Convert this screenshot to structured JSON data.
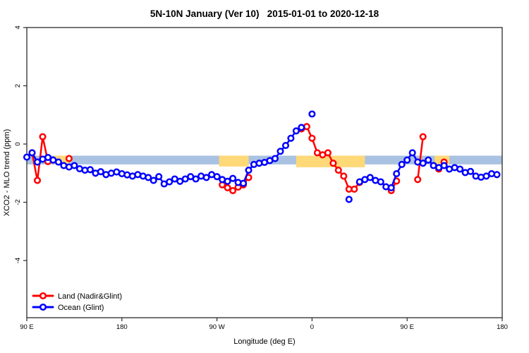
{
  "title": "5N-10N January (Ver 10)   2015-01-01 to 2020-12-18",
  "chart_data": {
    "type": "line",
    "title": "5N-10N January (Ver 10)   2015-01-01 to 2020-12-18",
    "xlabel": "Longitude (deg E)",
    "ylabel": "XCO2 - MLO trend (ppm)",
    "xlim": [
      90,
      540
    ],
    "ylim": [
      -5,
      4
    ],
    "y_ticks": [
      -4,
      -2,
      0,
      2,
      4
    ],
    "x_ticks": [
      {
        "lon": 90,
        "label": "90 E"
      },
      {
        "lon": 180,
        "label": "180"
      },
      {
        "lon": 270,
        "label": "90 W"
      },
      {
        "lon": 360,
        "label": "0"
      },
      {
        "lon": 450,
        "label": "90 E"
      },
      {
        "lon": 540,
        "label": "180"
      }
    ],
    "grid": false,
    "legend_position": "bottom-left",
    "reference_band": {
      "top": -0.4,
      "bottom": -0.7,
      "color": "#a9c2e1",
      "meaning": "ocean-band"
    },
    "land_color": "#ffd878",
    "land_patches": [
      {
        "from": 116,
        "to": 130,
        "depth": 0
      },
      {
        "from": 272,
        "to": 300,
        "depth": 3
      },
      {
        "from": 345,
        "to": 410,
        "depth": 4
      },
      {
        "from": 476,
        "to": 490,
        "depth": 0
      }
    ],
    "series": [
      {
        "id": "land",
        "name": "Land (Nadir&Glint)",
        "color": "#ff0000",
        "points": [
          [
            95,
            -0.3
          ],
          [
            100,
            -1.25
          ],
          [
            105,
            0.25
          ],
          [
            110,
            -0.6
          ],
          [
            130,
            -0.5
          ],
          [
            275,
            -1.4
          ],
          [
            280,
            -1.5
          ],
          [
            285,
            -1.6
          ],
          [
            290,
            -1.48
          ],
          [
            295,
            -1.4
          ],
          [
            300,
            -1.15
          ],
          [
            350,
            0.52
          ],
          [
            355,
            0.6
          ],
          [
            360,
            0.2
          ],
          [
            365,
            -0.3
          ],
          [
            370,
            -0.37
          ],
          [
            375,
            -0.3
          ],
          [
            380,
            -0.66
          ],
          [
            385,
            -0.9
          ],
          [
            390,
            -1.1
          ],
          [
            395,
            -1.55
          ],
          [
            400,
            -1.55
          ],
          [
            405,
            -1.32
          ],
          [
            435,
            -1.6
          ],
          [
            440,
            -1.27
          ],
          [
            460,
            -1.22
          ],
          [
            465,
            0.25
          ],
          [
            480,
            -0.86
          ],
          [
            485,
            -0.62
          ]
        ]
      },
      {
        "id": "ocean",
        "name": "Ocean (Glint)",
        "color": "#0000ff",
        "points": [
          [
            90,
            -0.45
          ],
          [
            95,
            -0.3
          ],
          [
            100,
            -0.62
          ],
          [
            105,
            -0.52
          ],
          [
            110,
            -0.46
          ],
          [
            115,
            -0.55
          ],
          [
            120,
            -0.62
          ],
          [
            125,
            -0.74
          ],
          [
            130,
            -0.79
          ],
          [
            135,
            -0.74
          ],
          [
            140,
            -0.85
          ],
          [
            145,
            -0.9
          ],
          [
            150,
            -0.88
          ],
          [
            155,
            -1.0
          ],
          [
            160,
            -0.95
          ],
          [
            165,
            -1.05
          ],
          [
            170,
            -1.0
          ],
          [
            175,
            -0.96
          ],
          [
            180,
            -1.02
          ],
          [
            185,
            -1.06
          ],
          [
            190,
            -1.1
          ],
          [
            195,
            -1.05
          ],
          [
            200,
            -1.1
          ],
          [
            205,
            -1.15
          ],
          [
            210,
            -1.25
          ],
          [
            215,
            -1.12
          ],
          [
            220,
            -1.37
          ],
          [
            225,
            -1.3
          ],
          [
            230,
            -1.2
          ],
          [
            235,
            -1.28
          ],
          [
            240,
            -1.2
          ],
          [
            245,
            -1.12
          ],
          [
            250,
            -1.2
          ],
          [
            255,
            -1.1
          ],
          [
            260,
            -1.15
          ],
          [
            265,
            -1.05
          ],
          [
            270,
            -1.12
          ],
          [
            275,
            -1.22
          ],
          [
            280,
            -1.28
          ],
          [
            285,
            -1.18
          ],
          [
            290,
            -1.32
          ],
          [
            295,
            -1.35
          ],
          [
            300,
            -0.9
          ],
          [
            305,
            -0.7
          ],
          [
            310,
            -0.66
          ],
          [
            315,
            -0.63
          ],
          [
            320,
            -0.57
          ],
          [
            325,
            -0.5
          ],
          [
            330,
            -0.25
          ],
          [
            335,
            -0.05
          ],
          [
            340,
            0.2
          ],
          [
            345,
            0.45
          ],
          [
            350,
            0.57
          ],
          [
            360,
            1.03
          ],
          [
            395,
            -1.9
          ],
          [
            405,
            -1.3
          ],
          [
            410,
            -1.22
          ],
          [
            415,
            -1.15
          ],
          [
            420,
            -1.25
          ],
          [
            425,
            -1.3
          ],
          [
            430,
            -1.47
          ],
          [
            435,
            -1.5
          ],
          [
            440,
            -1.02
          ],
          [
            445,
            -0.7
          ],
          [
            450,
            -0.55
          ],
          [
            455,
            -0.3
          ],
          [
            460,
            -0.62
          ],
          [
            465,
            -0.66
          ],
          [
            470,
            -0.55
          ],
          [
            475,
            -0.74
          ],
          [
            480,
            -0.81
          ],
          [
            485,
            -0.74
          ],
          [
            490,
            -0.86
          ],
          [
            495,
            -0.81
          ],
          [
            500,
            -0.86
          ],
          [
            505,
            -0.98
          ],
          [
            510,
            -0.94
          ],
          [
            515,
            -1.1
          ],
          [
            520,
            -1.14
          ],
          [
            525,
            -1.1
          ],
          [
            530,
            -1.02
          ],
          [
            535,
            -1.05
          ]
        ]
      }
    ]
  }
}
